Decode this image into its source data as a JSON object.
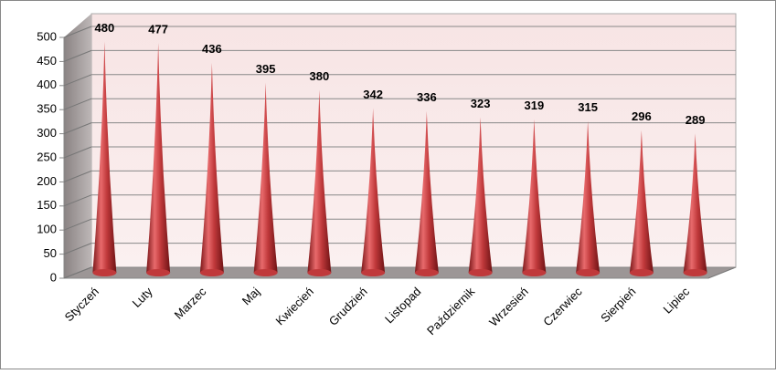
{
  "chart_data": {
    "type": "cone",
    "categories": [
      "Styczeń",
      "Luty",
      "Marzec",
      "Maj",
      "Kwiecień",
      "Grudzień",
      "Listopad",
      "Październik",
      "Wrzesień",
      "Czerwiec",
      "Sierpień",
      "Lipiec"
    ],
    "values": [
      480,
      477,
      436,
      395,
      380,
      342,
      336,
      323,
      319,
      315,
      296,
      289
    ],
    "color": "#c0393b",
    "ylim": [
      0,
      500
    ],
    "yticks": [
      0,
      50,
      100,
      150,
      200,
      250,
      300,
      350,
      400,
      450,
      500
    ],
    "grid": true
  }
}
